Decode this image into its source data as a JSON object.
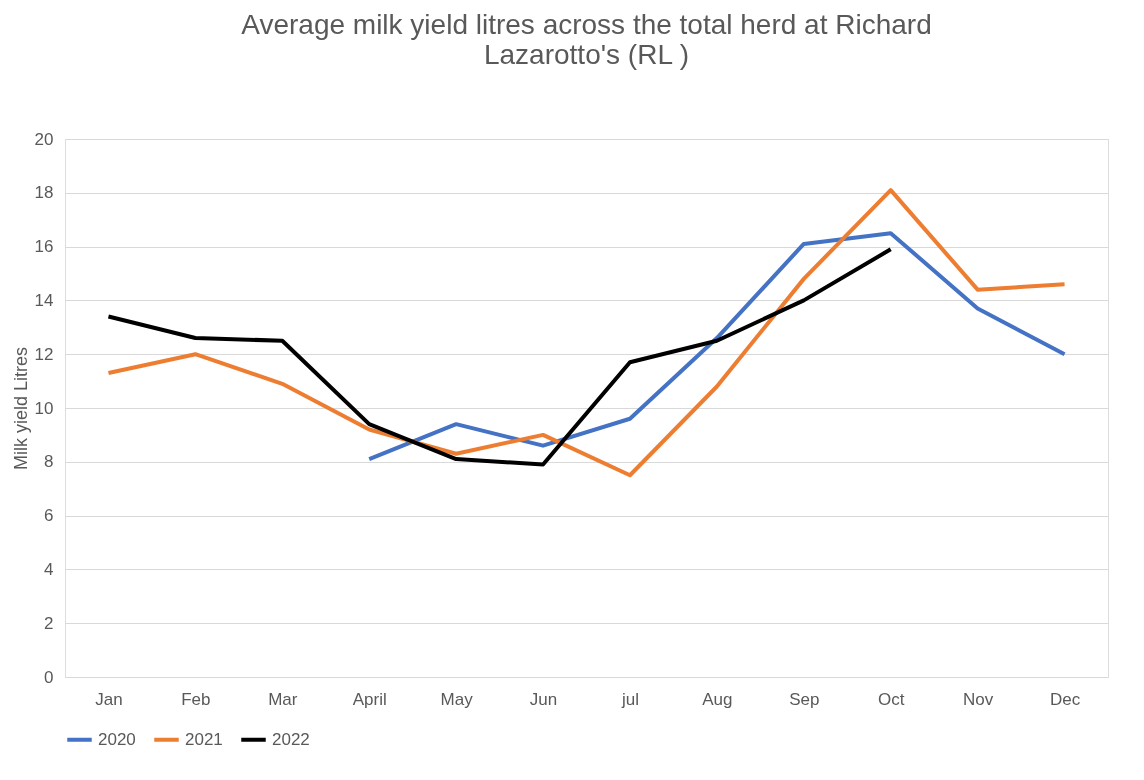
{
  "chart_data": {
    "type": "line",
    "title": "Average milk yield litres across the total herd at Richard Lazarotto's (RL )",
    "ylabel": "Milk yield Litres",
    "categories": [
      "Jan",
      "Feb",
      "Mar",
      "April",
      "May",
      "Jun",
      "jul",
      "Aug",
      "Sep",
      "Oct",
      "Nov",
      "Dec"
    ],
    "series": [
      {
        "name": "2020",
        "color": "#4472c4",
        "values": [
          null,
          null,
          null,
          8.1,
          9.4,
          8.6,
          9.6,
          12.6,
          16.1,
          16.5,
          13.7,
          12.0
        ]
      },
      {
        "name": "2021",
        "color": "#ed7d31",
        "values": [
          11.3,
          12.0,
          10.9,
          9.2,
          8.3,
          9.0,
          7.5,
          10.8,
          14.8,
          18.1,
          14.4,
          14.6
        ]
      },
      {
        "name": "2022",
        "color": "#000000",
        "values": [
          13.4,
          12.6,
          12.5,
          9.4,
          8.1,
          7.9,
          11.7,
          12.5,
          14.0,
          15.9,
          null,
          null
        ]
      }
    ],
    "ylim": [
      0,
      20
    ],
    "yticks": [
      0,
      2,
      4,
      6,
      8,
      10,
      12,
      14,
      16,
      18,
      20
    ],
    "grid": "y",
    "legend": "bottom",
    "marker": "none",
    "line_style": "solid"
  }
}
